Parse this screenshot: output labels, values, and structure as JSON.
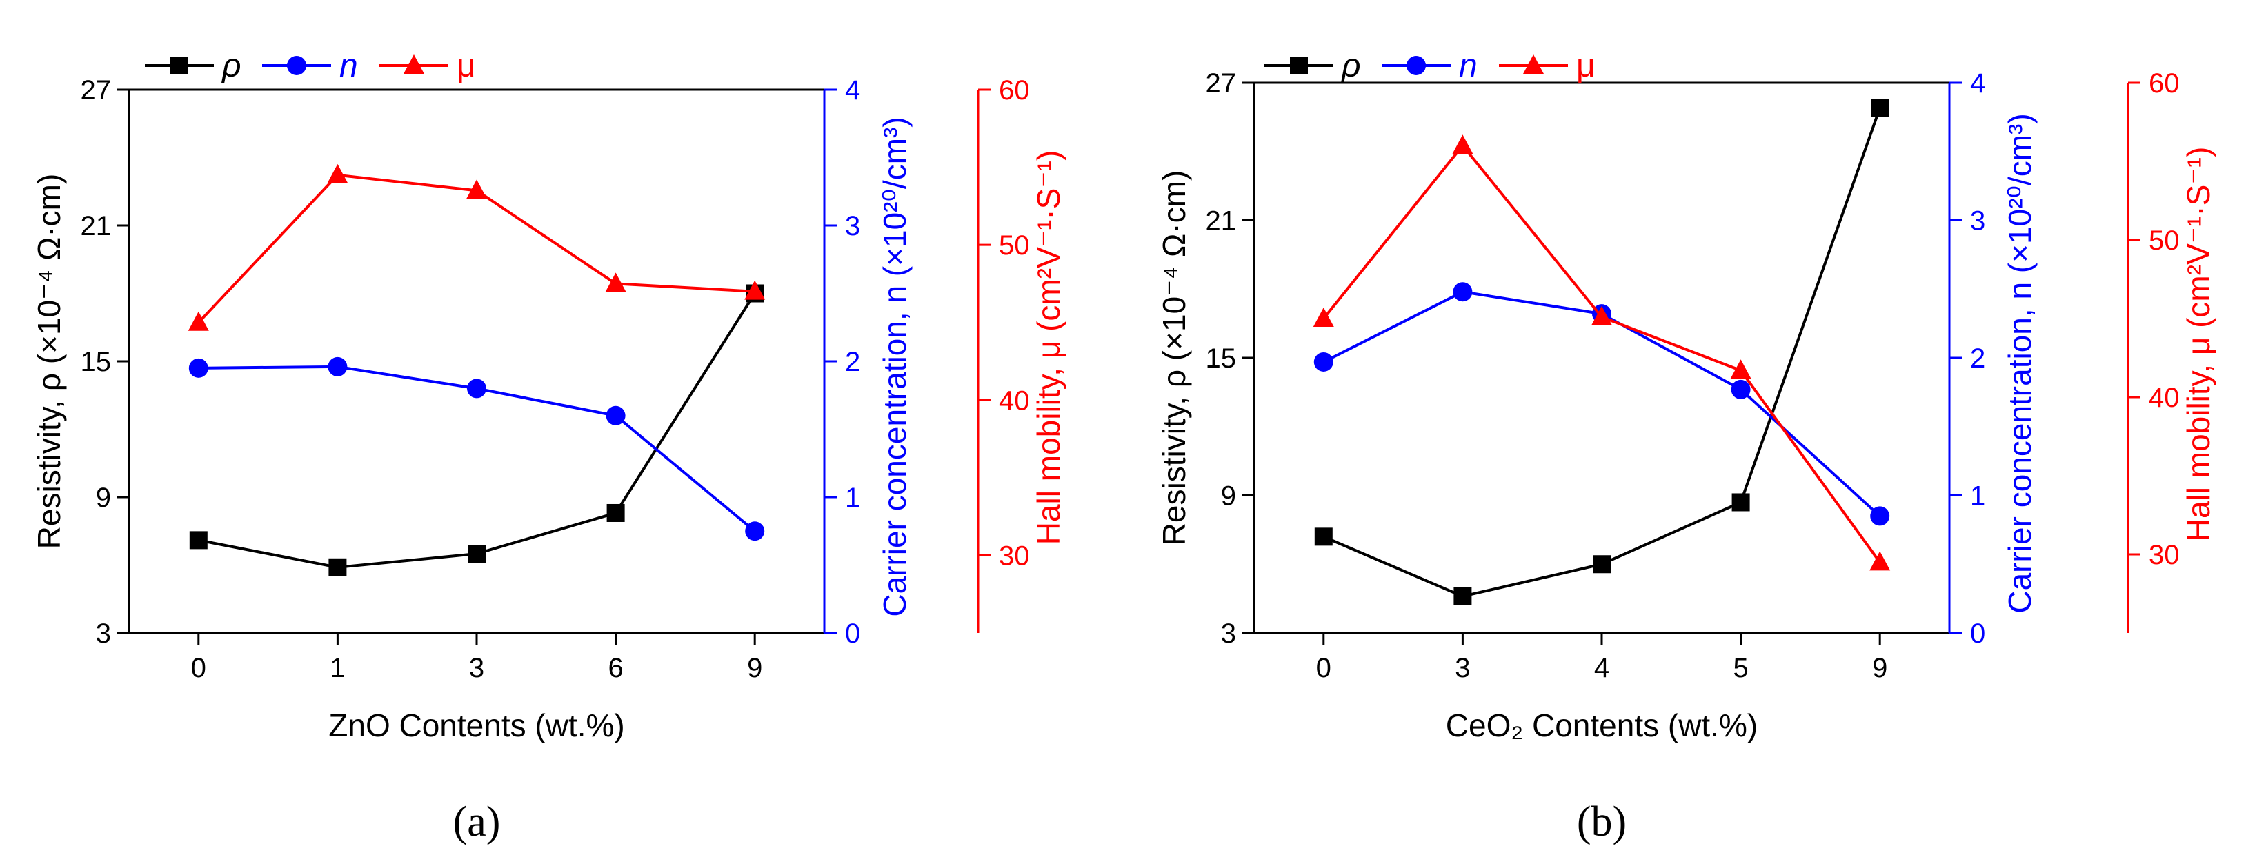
{
  "colors": {
    "rho": "#000000",
    "n": "#0000ff",
    "mu": "#ff0000"
  },
  "legend": {
    "rho": {
      "symbol": "ρ"
    },
    "n": {
      "symbol": "n"
    },
    "mu": {
      "symbol": "μ"
    }
  },
  "chart_data": [
    {
      "type": "line",
      "panel_label": "(a)",
      "xlabel": "ZnO Contents (wt.%)",
      "categories": [
        "0",
        "1",
        "3",
        "6",
        "9"
      ],
      "axes": {
        "left": {
          "label": "Resistivity, ρ (×10⁻⁴ Ω·cm)",
          "range": [
            3,
            27
          ],
          "ticks": [
            3,
            9,
            15,
            21,
            27
          ],
          "color": "#000000"
        },
        "right1": {
          "label": "Carrier concentration, n (×10²⁰/cm³)",
          "range": [
            0,
            4
          ],
          "ticks": [
            0,
            1,
            2,
            3,
            4
          ],
          "color": "#0000ff"
        },
        "right2": {
          "label": "Hall mobility, μ (cm²V⁻¹·S⁻¹)",
          "range": [
            25,
            60
          ],
          "ticks": [
            30,
            40,
            50,
            60
          ],
          "color": "#ff0000"
        }
      },
      "series": [
        {
          "name": "ρ",
          "axis": "left",
          "marker": "square",
          "color": "#000000",
          "values": [
            7.1,
            5.9,
            6.5,
            8.3,
            18.0
          ]
        },
        {
          "name": "n",
          "axis": "right1",
          "marker": "circle",
          "color": "#0000ff",
          "values": [
            1.95,
            1.96,
            1.8,
            1.6,
            0.75
          ]
        },
        {
          "name": "μ",
          "axis": "right2",
          "marker": "triangle",
          "color": "#ff0000",
          "values": [
            45.0,
            54.5,
            53.5,
            47.5,
            47.0
          ]
        }
      ]
    },
    {
      "type": "line",
      "panel_label": "(b)",
      "xlabel": "CeO₂ Contents (wt.%)",
      "categories": [
        "0",
        "3",
        "4",
        "5",
        "9"
      ],
      "axes": {
        "left": {
          "label": "Resistivity, ρ (×10⁻⁴ Ω·cm)",
          "range": [
            3,
            27
          ],
          "ticks": [
            3,
            9,
            15,
            21,
            27
          ],
          "color": "#000000"
        },
        "right1": {
          "label": "Carrier concentration, n (×10²⁰/cm³)",
          "range": [
            0,
            4
          ],
          "ticks": [
            0,
            1,
            2,
            3,
            4
          ],
          "color": "#0000ff"
        },
        "right2": {
          "label": "Hall mobility, μ (cm²V⁻¹·S⁻¹)",
          "range": [
            25,
            60
          ],
          "ticks": [
            30,
            40,
            50,
            60
          ],
          "color": "#ff0000"
        }
      },
      "series": [
        {
          "name": "ρ",
          "axis": "left",
          "marker": "square",
          "color": "#000000",
          "values": [
            7.2,
            4.6,
            6.0,
            8.7,
            25.9
          ]
        },
        {
          "name": "n",
          "axis": "right1",
          "marker": "circle",
          "color": "#0000ff",
          "values": [
            1.97,
            2.48,
            2.32,
            1.77,
            0.85
          ]
        },
        {
          "name": "μ",
          "axis": "right2",
          "marker": "triangle",
          "color": "#ff0000",
          "values": [
            45.0,
            56.0,
            45.1,
            41.7,
            29.5
          ]
        }
      ]
    }
  ]
}
